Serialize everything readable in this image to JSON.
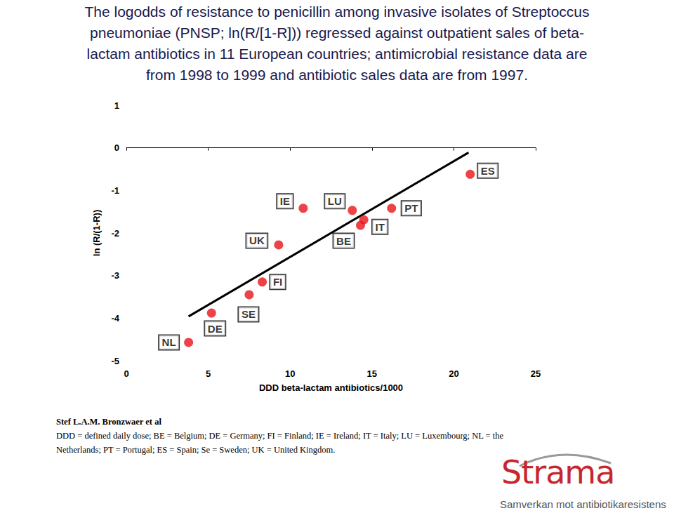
{
  "chart_data": {
    "type": "scatter",
    "title": [
      "The logodds of resistance to penicillin among invasive isolates of Streptoccus",
      "pneumoniae (PNSP; ln(R/[1-R])) regressed against outpatient sales of beta-",
      "lactam antibiotics in 11 European countries; antimicrobial resistance data are",
      "from 1998 to 1999 and antibiotic sales data are from 1997."
    ],
    "x_label": "DDD beta-lactam antibiotics/1000",
    "y_label": "ln (R/(1-R))",
    "xlim": [
      0,
      25
    ],
    "xticks": [
      0,
      5,
      10,
      15,
      20,
      25
    ],
    "ylim": [
      -5,
      1
    ],
    "yticks": [
      -5,
      -4,
      -3,
      -2,
      -1,
      0,
      1
    ],
    "grid": false,
    "series": [
      {
        "type": "scatter",
        "marker": "circle",
        "color": "#e8141a",
        "labels": [
          "NL",
          "DE",
          "SE",
          "FI",
          "UK",
          "IE",
          "LU",
          "BE",
          "IT",
          "PT",
          "ES"
        ],
        "x": [
          3.8,
          5.2,
          7.5,
          8.3,
          9.3,
          10.8,
          13.8,
          14.3,
          14.5,
          16.2,
          21.0
        ],
        "values": [
          -4.57,
          -3.88,
          -3.45,
          -3.15,
          -2.28,
          -1.42,
          -1.47,
          -1.82,
          -1.69,
          -1.42,
          -0.62
        ]
      },
      {
        "type": "line",
        "line_style": "solid",
        "color": "#000000",
        "x": [
          3.8,
          20.9
        ],
        "values": [
          -3.96,
          -0.11
        ]
      }
    ]
  },
  "footer": {
    "source": "Stef L.A.M. Bronzwaer et al",
    "caption": [
      "DDD = defined daily dose; BE = Belgium; DE = Germany; FI = Finland; IE = Ireland; IT = Italy; LU = Luxembourg; NL = the",
      "Netherlands; PT = Portugal; ES = Spain; Se = Sweden; UK = United Kingdom."
    ]
  },
  "logo": {
    "name": "Strama",
    "tagline": "Samverkan mot antibiotikaresistens"
  }
}
